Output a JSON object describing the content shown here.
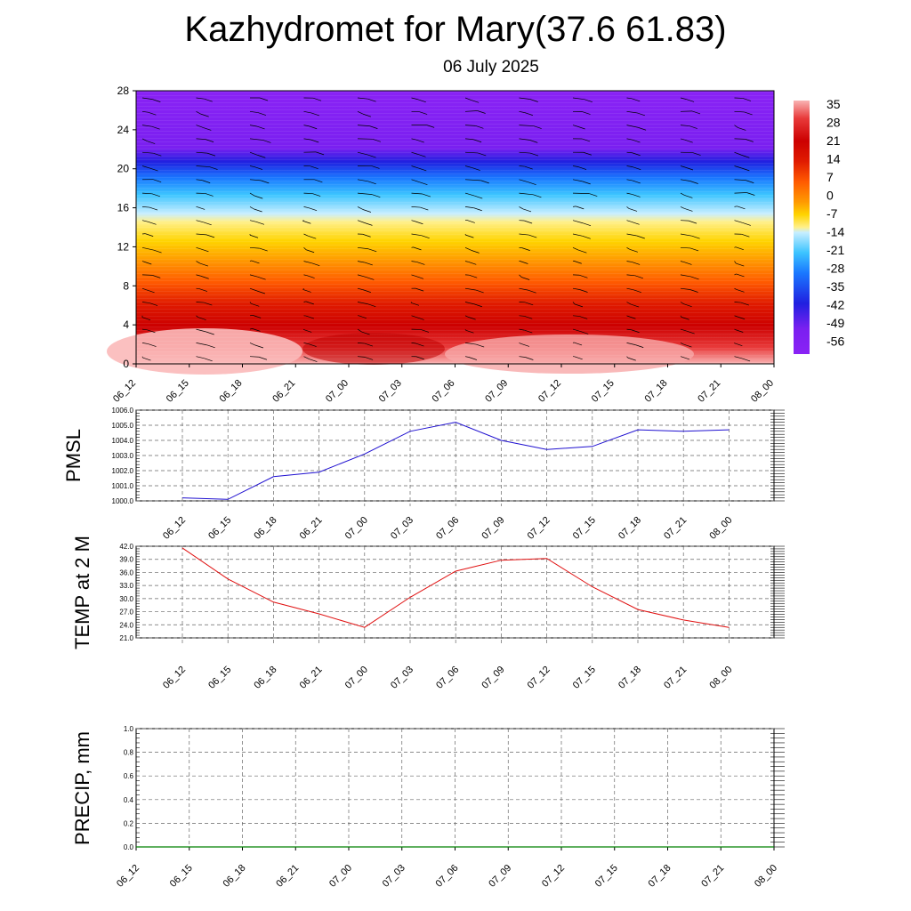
{
  "title": "Kazhydromet for Mary(37.6 61.83)",
  "subtitle": "06 July 2025",
  "chart_data": [
    {
      "type": "heatmap",
      "name": "cross-section",
      "ylim": [
        0,
        28
      ],
      "y_ticks": [
        "0",
        "4",
        "8",
        "12",
        "16",
        "20",
        "24",
        "28"
      ],
      "x_ticks": [
        "06_12",
        "06_15",
        "06_18",
        "06_21",
        "07_00",
        "07_03",
        "07_06",
        "07_09",
        "07_12",
        "07_15",
        "07_18",
        "07_21",
        "08_00"
      ],
      "colorbar_labels": [
        "35",
        "28",
        "21",
        "14",
        "7",
        "0",
        "-7",
        "-14",
        "-21",
        "-28",
        "-35",
        "-42",
        "-49",
        "-56"
      ],
      "grid": false
    },
    {
      "type": "line",
      "ylabel": "PMSL",
      "ylim": [
        1000,
        1006
      ],
      "y_ticks": [
        "1000.0",
        "1001.0",
        "1002.0",
        "1003.0",
        "1004.0",
        "1005.0",
        "1006.0"
      ],
      "categories": [
        "06_12",
        "06_15",
        "06_18",
        "06_21",
        "07_00",
        "07_03",
        "07_06",
        "07_09",
        "07_12",
        "07_15",
        "07_18",
        "07_21",
        "08_00"
      ],
      "values": [
        1000.2,
        1000.1,
        1001.6,
        1001.9,
        1003.1,
        1004.6,
        1005.2,
        1004.0,
        1003.4,
        1003.6,
        1004.7,
        1004.6,
        1004.7
      ],
      "color": "#1f10d0",
      "grid": true
    },
    {
      "type": "line",
      "ylabel": "TEMP at 2 M",
      "ylim": [
        21,
        42
      ],
      "y_ticks": [
        "21.0",
        "24.0",
        "27.0",
        "30.0",
        "33.0",
        "36.0",
        "39.0",
        "42.0"
      ],
      "categories": [
        "06_12",
        "06_15",
        "06_18",
        "06_21",
        "07_00",
        "07_03",
        "07_06",
        "07_09",
        "07_12",
        "07_15",
        "07_18",
        "07_21",
        "08_00"
      ],
      "values": [
        41.6,
        34.5,
        29.2,
        26.5,
        23.4,
        30.3,
        36.3,
        38.8,
        39.2,
        32.7,
        27.5,
        25.1,
        23.4
      ],
      "color": "#e01010",
      "grid": true
    },
    {
      "type": "line",
      "ylabel": "PRECIP, mm",
      "ylim": [
        0,
        1
      ],
      "y_ticks": [
        "0.0",
        "0.2",
        "0.4",
        "0.6",
        "0.8",
        "1.0"
      ],
      "x_ticks": [
        "06_12",
        "06_15",
        "06_18",
        "06_21",
        "07_00",
        "07_03",
        "07_06",
        "07_09",
        "07_12",
        "07_15",
        "07_18",
        "07_21",
        "08_00"
      ],
      "values": [
        0,
        0,
        0,
        0,
        0,
        0,
        0,
        0,
        0,
        0,
        0,
        0,
        0
      ],
      "color": "#008000",
      "grid": true
    }
  ]
}
